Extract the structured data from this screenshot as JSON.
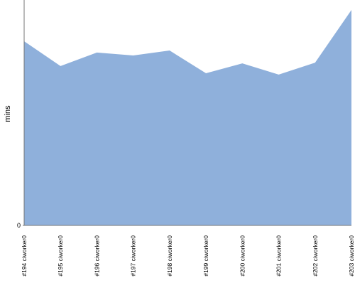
{
  "chart_data": {
    "type": "area",
    "y_label": "mins",
    "categories": [
      "#194 ciworker0",
      "#195 ciworker0",
      "#196 ciworker0",
      "#197 ciworker0",
      "#198 ciworker0",
      "#199 ciworker0",
      "#200 ciworker0",
      "#201 ciworker0",
      "#202 ciworker0",
      "#203 ciworker0"
    ],
    "values": [
      81.7,
      70.7,
      76.7,
      75.4,
      77.6,
      67.5,
      71.9,
      66.9,
      72.2,
      95.6
    ],
    "color": "#8fb0db",
    "ylim": [
      0,
      100
    ],
    "yticks": [
      0
    ]
  }
}
